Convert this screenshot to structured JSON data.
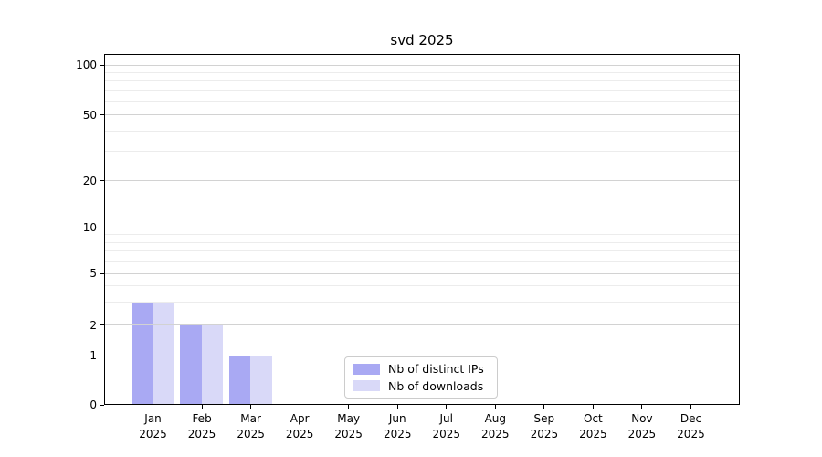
{
  "title": "svd 2025",
  "chart_data": {
    "type": "bar",
    "title": "svd 2025",
    "categories": [
      "Jan",
      "Feb",
      "Mar",
      "Apr",
      "May",
      "Jun",
      "Jul",
      "Aug",
      "Sep",
      "Oct",
      "Nov",
      "Dec"
    ],
    "category_year": "2025",
    "series": [
      {
        "name": "Nb of distinct IPs",
        "color": "#a9a9f3",
        "values": [
          3,
          2,
          1,
          0,
          0,
          0,
          0,
          0,
          0,
          0,
          0,
          0
        ]
      },
      {
        "name": "Nb of downloads",
        "color": "#d9d9f8",
        "values": [
          3,
          2,
          1,
          0,
          0,
          0,
          0,
          0,
          0,
          0,
          0,
          0
        ]
      }
    ],
    "yscale": "custom-log",
    "y_tick_labels": [
      "0",
      "1",
      "2",
      "5",
      "10",
      "20",
      "50",
      "100"
    ],
    "y_tick_values": [
      0,
      1,
      2,
      5,
      10,
      20,
      50,
      100
    ],
    "y_minor_gridlines": [
      3,
      4,
      6,
      7,
      8,
      9,
      30,
      40,
      60,
      70,
      80,
      90
    ],
    "ylim": [
      0,
      120
    ],
    "grid": true,
    "legend_position": "lower center"
  },
  "colors": {
    "bar_distinct_ips": "#a9a9f3",
    "bar_downloads": "#d9d9f8",
    "grid_major": "#d2d2d2",
    "grid_minor": "#ececec",
    "axis": "#000000",
    "background": "#ffffff"
  }
}
